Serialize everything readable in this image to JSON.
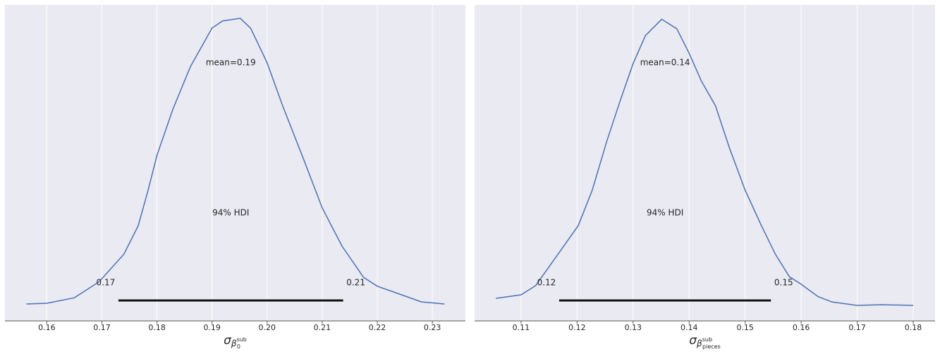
{
  "chart_data": [
    {
      "type": "line",
      "x": [
        0.1563,
        0.16,
        0.165,
        0.1695,
        0.174,
        0.1766,
        0.1784,
        0.18,
        0.1829,
        0.1861,
        0.19,
        0.1919,
        0.1951,
        0.197,
        0.2,
        0.2028,
        0.2066,
        0.21,
        0.2136,
        0.2175,
        0.22,
        0.2232,
        0.228,
        0.2322
      ],
      "series": [
        {
          "color": "#4c72b0",
          "values": [
            0,
            0.08,
            0.7,
            2.5,
            5.6,
            8.8,
            12.8,
            16.7,
            21.9,
            26.7,
            31,
            31.8,
            32.1,
            31,
            27.1,
            22.3,
            16.3,
            10.8,
            6.5,
            3.0,
            2.0,
            1.3,
            0.24,
            0
          ]
        }
      ],
      "xlim": [
        0.1524,
        0.236
      ],
      "ylim": [
        -1.9,
        33.6
      ],
      "xticks": [
        0.16,
        0.17,
        0.18,
        0.19,
        {
          "value": 0.2,
          "label": "0.20"
        },
        0.21,
        0.22,
        0.23
      ],
      "grid": true,
      "mean_label": "mean=0.19",
      "hdi": [
        0.173,
        0.2138
      ],
      "hdi_labels": [
        "0.17",
        "0.21"
      ],
      "hdi_color": "#111111",
      "hdi_prob_label": "94% HDI",
      "xlabel": {
        "symbol": "σ",
        "sub": "β",
        "subsub": "0",
        "supsub": "sub"
      }
    },
    {
      "type": "line",
      "x": [
        0.1055,
        0.11,
        0.1126,
        0.1171,
        0.1202,
        0.1227,
        0.1253,
        0.1278,
        0.13,
        0.1322,
        0.1351,
        0.1378,
        0.14,
        0.1422,
        0.1447,
        0.1472,
        0.15,
        0.1529,
        0.1554,
        0.1579,
        0.16,
        0.163,
        0.1655,
        0.17,
        0.1744,
        0.18
      ],
      "series": [
        {
          "color": "#4c72b0",
          "values": [
            1.03,
            1.55,
            2.9,
            8.1,
            11.7,
            16.9,
            24.1,
            30.3,
            35.5,
            39.6,
            42,
            40.6,
            37,
            32.9,
            29.3,
            23.1,
            16.9,
            11.7,
            7.5,
            4.2,
            3.1,
            1.3,
            0.5,
            0,
            0.1,
            0
          ]
        }
      ],
      "xlim": [
        0.1017,
        0.1839
      ],
      "ylim": [
        -2.28,
        44.1
      ],
      "xticks": [
        0.11,
        0.12,
        0.13,
        0.14,
        0.15,
        0.16,
        0.17,
        0.18
      ],
      "grid": true,
      "mean_label": "mean=0.14",
      "hdi": [
        0.1168,
        0.1546
      ],
      "hdi_labels": [
        "0.12",
        "0.15"
      ],
      "hdi_color": "#111111",
      "hdi_prob_label": "94% HDI",
      "xlabel": {
        "symbol": "σ",
        "sub": "β",
        "subsub": "pieces",
        "supsub": "sub"
      }
    }
  ]
}
